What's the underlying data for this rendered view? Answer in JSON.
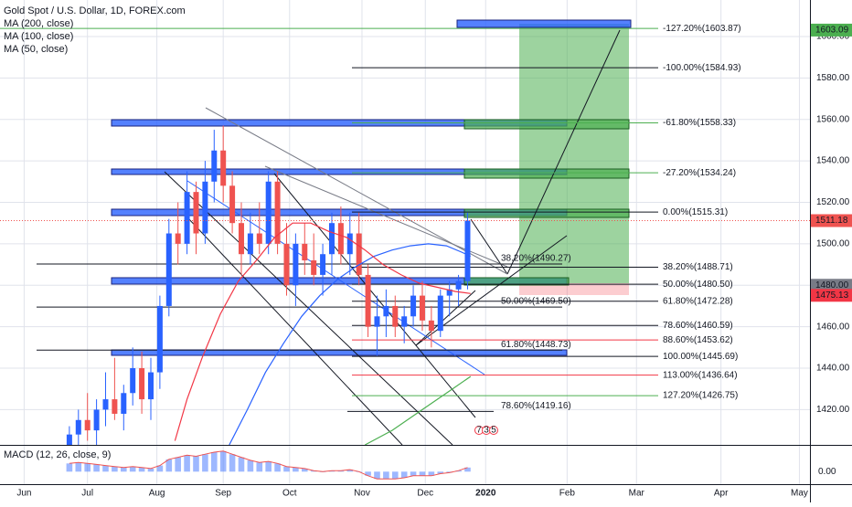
{
  "chart_data": {
    "type": "candlestick",
    "title": "Gold Spot / U.S. Dollar, 1D, FOREX.com",
    "up_color": "#2962ff",
    "down_color": "#ef5350",
    "x": [
      23,
      26,
      29,
      32,
      35,
      38,
      41,
      44,
      47,
      50,
      53,
      56,
      59,
      62,
      65,
      68,
      71,
      74,
      77,
      80,
      83,
      86,
      89,
      92,
      95,
      98,
      101,
      104,
      107,
      110,
      113,
      116,
      119,
      122,
      125,
      128,
      131,
      134,
      137,
      140,
      143,
      146,
      149,
      152,
      155
    ],
    "open": [
      1395,
      1408,
      1415,
      1410,
      1420,
      1425,
      1418,
      1428,
      1440,
      1425,
      1438,
      1470,
      1505,
      1500,
      1525,
      1505,
      1530,
      1545,
      1528,
      1510,
      1495,
      1505,
      1500,
      1530,
      1500,
      1480,
      1500,
      1492,
      1485,
      1495,
      1510,
      1495,
      1505,
      1485,
      1460,
      1465,
      1470,
      1460,
      1465,
      1475,
      1463,
      1458,
      1475,
      1478,
      1482
    ],
    "high": [
      1412,
      1420,
      1428,
      1425,
      1438,
      1445,
      1432,
      1450,
      1448,
      1445,
      1475,
      1512,
      1520,
      1535,
      1530,
      1540,
      1555,
      1557,
      1535,
      1520,
      1515,
      1520,
      1535,
      1535,
      1510,
      1505,
      1510,
      1505,
      1500,
      1515,
      1518,
      1515,
      1515,
      1490,
      1475,
      1478,
      1475,
      1470,
      1480,
      1482,
      1470,
      1478,
      1482,
      1485,
      1515
    ],
    "low": [
      1385,
      1400,
      1405,
      1402,
      1412,
      1415,
      1410,
      1422,
      1418,
      1415,
      1430,
      1465,
      1490,
      1495,
      1495,
      1500,
      1520,
      1520,
      1505,
      1485,
      1490,
      1495,
      1495,
      1495,
      1475,
      1470,
      1485,
      1480,
      1475,
      1485,
      1490,
      1485,
      1480,
      1455,
      1446,
      1455,
      1455,
      1452,
      1460,
      1458,
      1450,
      1455,
      1465,
      1470,
      1478
    ],
    "close": [
      1408,
      1415,
      1410,
      1420,
      1425,
      1418,
      1428,
      1440,
      1425,
      1438,
      1470,
      1505,
      1500,
      1525,
      1505,
      1530,
      1545,
      1528,
      1510,
      1495,
      1505,
      1500,
      1530,
      1500,
      1480,
      1500,
      1492,
      1485,
      1495,
      1510,
      1495,
      1505,
      1485,
      1460,
      1465,
      1470,
      1460,
      1465,
      1475,
      1463,
      1458,
      1475,
      1478,
      1482,
      1511.18
    ],
    "xlim": [
      0,
      268.5
    ],
    "xticks": [
      {
        "value": 8,
        "label": "Jun"
      },
      {
        "value": 29,
        "label": "Jul"
      },
      {
        "value": 52,
        "label": "Aug"
      },
      {
        "value": 74,
        "label": "Sep"
      },
      {
        "value": 96,
        "label": "Oct"
      },
      {
        "value": 120,
        "label": "Nov"
      },
      {
        "value": 141,
        "label": "Dec"
      },
      {
        "value": 161,
        "label": "2020"
      },
      {
        "value": 188,
        "label": "Feb"
      },
      {
        "value": 211,
        "label": "Mar"
      },
      {
        "value": 239,
        "label": "Apr"
      },
      {
        "value": 265,
        "label": "May"
      }
    ],
    "ylim": [
      1403,
      1617.6
    ],
    "yticks": [
      {
        "value": 1420,
        "label": "1420.00"
      },
      {
        "value": 1440,
        "label": "1440.00"
      },
      {
        "value": 1460,
        "label": "1460.00"
      },
      {
        "value": 1480,
        "label": "1480.00"
      },
      {
        "value": 1500,
        "label": "1500.00"
      },
      {
        "value": 1520,
        "label": "1520.00"
      },
      {
        "value": 1540,
        "label": "1540.00"
      },
      {
        "value": 1560,
        "label": "1560.00"
      },
      {
        "value": 1580,
        "label": "1580.00"
      },
      {
        "value": 1600,
        "label": "1600.00"
      }
    ],
    "grid": true,
    "moving_averages": [
      {
        "name": "MA (200, close)",
        "color": "#4caf50",
        "x": [
          121,
          130,
          140,
          150,
          156
        ],
        "values": [
          1403,
          1410,
          1420,
          1430,
          1436
        ]
      },
      {
        "name": "MA (100, close)",
        "color": "#2962ff",
        "x": [
          76,
          82,
          88,
          94,
          100,
          106,
          112,
          118,
          124,
          130,
          136,
          142,
          148,
          153,
          156
        ],
        "values": [
          1403,
          1420,
          1438,
          1452,
          1465,
          1475,
          1483,
          1489,
          1494,
          1497,
          1499,
          1500,
          1499,
          1496,
          1494
        ]
      },
      {
        "name": "MA (50, close)",
        "color": "#f23645",
        "x": [
          58,
          62,
          67,
          73,
          79,
          85,
          91,
          97,
          103,
          109,
          115,
          121,
          127,
          133,
          139,
          145,
          151,
          156
        ],
        "values": [
          1405,
          1425,
          1445,
          1466,
          1482,
          1492,
          1503,
          1510,
          1510,
          1506,
          1503,
          1497,
          1490,
          1485,
          1481,
          1479,
          1477,
          1476
        ]
      }
    ],
    "fib_levels": [
      {
        "label": "-127.20%(1603.87)",
        "value": 1603.87,
        "color": "#4caf50"
      },
      {
        "label": "-100.00%(1584.93)",
        "value": 1584.93,
        "color": "#131722"
      },
      {
        "label": "-61.80%(1558.33)",
        "value": 1558.33,
        "color": "#4caf50"
      },
      {
        "label": "-27.20%(1534.24)",
        "value": 1534.24,
        "color": "#4caf50"
      },
      {
        "label": "0.00%(1515.31)",
        "value": 1515.31,
        "color": "#131722"
      },
      {
        "label": "38.20%(1488.71)",
        "value": 1488.71,
        "color": "#131722"
      },
      {
        "label": "50.00%(1480.50)",
        "value": 1480.5,
        "color": "#131722"
      },
      {
        "label": "61.80%(1472.28)",
        "value": 1472.28,
        "color": "#131722"
      },
      {
        "label": "78.60%(1460.59)",
        "value": 1460.59,
        "color": "#131722"
      },
      {
        "label": "88.60%(1453.62)",
        "value": 1453.62,
        "color": "#f23645"
      },
      {
        "label": "100.00%(1445.69)",
        "value": 1445.69,
        "color": "#131722"
      },
      {
        "label": "113.00%(1436.64)",
        "value": 1436.64,
        "color": "#f23645"
      },
      {
        "label": "127.20%(1426.75)",
        "value": 1426.75,
        "color": "#4caf50"
      }
    ],
    "fib_levels_2": [
      {
        "label": "38.20%(1490.27)",
        "value": 1490.27,
        "color": "#131722"
      },
      {
        "label": "50.00%(1469.50)",
        "value": 1469.5,
        "color": "#131722"
      },
      {
        "label": "61.80%(1448.73)",
        "value": 1448.73,
        "color": "#131722"
      },
      {
        "label": "78.60%(1419.16)",
        "value": 1419.16,
        "color": "#131722"
      }
    ],
    "price_labels": [
      {
        "value": 1603.09,
        "label": "1603.09",
        "color": "#4caf50"
      },
      {
        "value": 1480,
        "label": "1480.00",
        "color": "#787b86"
      },
      {
        "value": 1475.13,
        "label": "1475.13",
        "color": "#f23645"
      }
    ],
    "macd": {
      "title": "MACD (12, 26, close, 9)",
      "color": "#2962ff",
      "ylim": [
        -12.2,
        25.2
      ],
      "yticks": [
        {
          "value": 0,
          "label": "0.00"
        }
      ],
      "values": [
        8,
        9,
        8,
        7,
        6,
        5,
        4,
        5,
        4,
        3,
        6,
        12,
        14,
        16,
        15,
        17,
        19,
        20,
        17,
        14,
        11,
        9,
        10,
        8,
        5,
        4,
        3,
        1,
        0,
        1,
        1,
        2,
        0,
        -4,
        -7,
        -7,
        -7,
        -6,
        -4,
        -4,
        -4,
        -2,
        -1,
        1,
        4
      ]
    },
    "events": [
      "7",
      "3",
      "5"
    ]
  }
}
